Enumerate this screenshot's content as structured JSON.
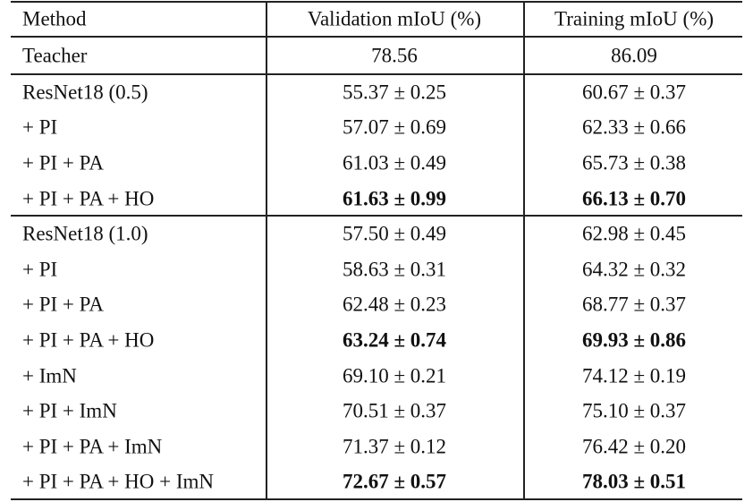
{
  "table": {
    "header": [
      "Method",
      "Validation mIoU (%)",
      "Training mIoU (%)"
    ],
    "sections": [
      [
        {
          "cells": [
            "Teacher",
            "78.56",
            "86.09"
          ]
        }
      ],
      [
        {
          "cells": [
            "ResNet18 (0.5)",
            "55.37 ± 0.25",
            "60.67 ± 0.37"
          ]
        },
        {
          "cells": [
            "+ PI",
            "57.07 ± 0.69",
            "62.33 ± 0.66"
          ]
        },
        {
          "cells": [
            "+ PI + PA",
            "61.03 ± 0.49",
            "65.73 ± 0.38"
          ]
        },
        {
          "cells": [
            "+ PI + PA + HO",
            "61.63 ± 0.99",
            "66.13 ± 0.70"
          ],
          "bold": true
        }
      ],
      [
        {
          "cells": [
            "ResNet18 (1.0)",
            "57.50 ± 0.49",
            "62.98 ± 0.45"
          ]
        },
        {
          "cells": [
            "+ PI",
            "58.63 ± 0.31",
            "64.32 ± 0.32"
          ]
        },
        {
          "cells": [
            "+ PI + PA",
            "62.48 ± 0.23",
            "68.77 ± 0.37"
          ]
        },
        {
          "cells": [
            "+ PI + PA + HO",
            "63.24 ± 0.74",
            "69.93 ± 0.86"
          ],
          "bold": true
        },
        {
          "cells": [
            "+ ImN",
            "69.10 ± 0.21",
            "74.12 ± 0.19"
          ]
        },
        {
          "cells": [
            "+ PI + ImN",
            "70.51 ± 0.37",
            "75.10 ± 0.37"
          ]
        },
        {
          "cells": [
            "+ PI + PA + ImN",
            "71.37 ± 0.12",
            "76.42 ± 0.20"
          ]
        },
        {
          "cells": [
            "+ PI + PA + HO + ImN",
            "72.67 ± 0.57",
            "78.03 ± 0.51"
          ],
          "bold": true
        }
      ]
    ]
  }
}
